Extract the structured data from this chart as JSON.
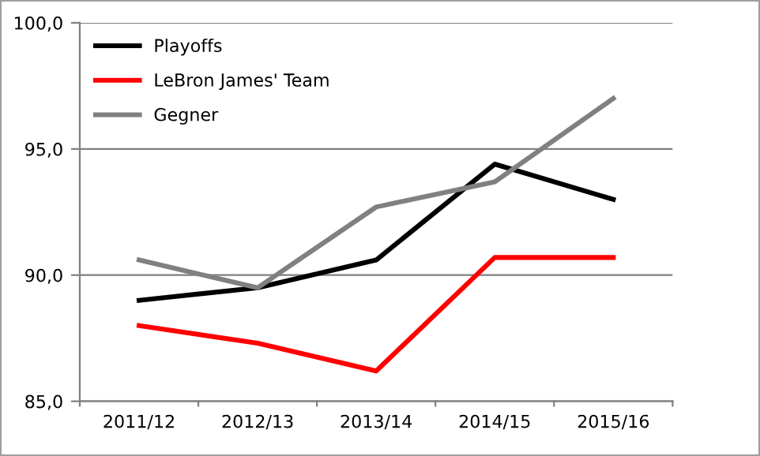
{
  "chart_data": {
    "type": "line",
    "categories": [
      "2011/12",
      "2012/13",
      "2013/14",
      "2014/15",
      "2015/16"
    ],
    "series": [
      {
        "name": "Playoffs",
        "color": "#000000",
        "values": [
          89.0,
          89.5,
          90.6,
          94.4,
          93.0
        ]
      },
      {
        "name": "LeBron James' Team",
        "color": "#ff0000",
        "values": [
          88.0,
          87.3,
          86.2,
          90.7,
          90.7
        ]
      },
      {
        "name": "Gegner",
        "color": "#808080",
        "values": [
          90.6,
          89.5,
          92.7,
          93.7,
          97.0
        ]
      }
    ],
    "ylim": [
      85,
      100
    ],
    "yticks": [
      {
        "value": 85,
        "label": "85,0"
      },
      {
        "value": 90,
        "label": "90,0"
      },
      {
        "value": 95,
        "label": "95,0"
      },
      {
        "value": 100,
        "label": "100,0"
      }
    ],
    "grid": "y",
    "legend": "top left",
    "marker": "none",
    "line_style": "solid"
  }
}
